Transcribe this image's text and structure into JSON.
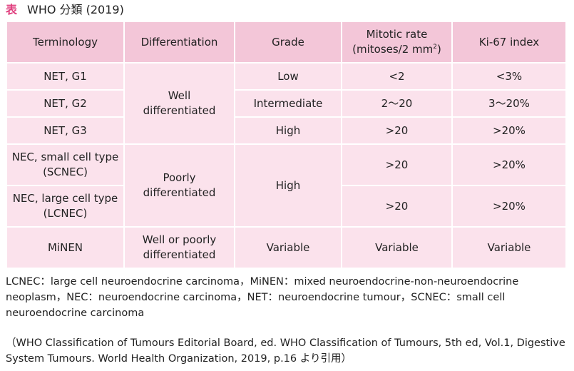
{
  "title": {
    "label": "表",
    "text": "WHO 分類 (2019)"
  },
  "table": {
    "headers": {
      "terminology": "Terminology",
      "differentiation": "Differentiation",
      "grade": "Grade",
      "mitotic_line1": "Mitotic rate",
      "mitotic_line2": "(mitoses/2 mm",
      "mitotic_sup": "2",
      "mitotic_close": ")",
      "ki67": "Ki-67 index"
    },
    "rows": [
      {
        "terminology": "NET, G1",
        "grade": "Low",
        "mitotic": "<2",
        "ki67": "<3%"
      },
      {
        "terminology": "NET, G2",
        "grade": "Intermediate",
        "mitotic": "2〜20",
        "ki67": "3〜20%"
      },
      {
        "terminology": "NET, G3",
        "grade": "High",
        "mitotic": ">20",
        "ki67": ">20%"
      },
      {
        "terminology_line1": "NEC, small cell type",
        "terminology_line2": "(SCNEC)",
        "mitotic": ">20",
        "ki67": ">20%"
      },
      {
        "terminology_line1": "NEC, large cell type",
        "terminology_line2": "(LCNEC)",
        "mitotic": ">20",
        "ki67": ">20%"
      },
      {
        "terminology": "MiNEN",
        "differentiation_line1": "Well or poorly",
        "differentiation_line2": "differentiated",
        "grade": "Variable",
        "mitotic": "Variable",
        "ki67": "Variable"
      }
    ],
    "groups": {
      "net_diff_line1": "Well",
      "net_diff_line2": "differentiated",
      "nec_diff_line1": "Poorly",
      "nec_diff_line2": "differentiated",
      "nec_grade": "High"
    }
  },
  "notes": "LCNEC：large cell neuroendocrine carcinoma，MiNEN：mixed neuroendocrine-non-neuroendocrine neoplasm，NEC：neuroendocrine carcinoma，NET：neuroendocrine tumour，SCNEC：small cell neuroendocrine carcinoma",
  "citation": "（WHO Classification of Tumours Editorial Board, ed. WHO Classification of Tumours, 5th ed, Vol.1, Digestive System Tumours. World Health Organization, 2019, p.16 より引用）",
  "colors": {
    "accent": "#e0407f",
    "header_bg": "#f3c6d8",
    "body_bg": "#fbe2ec"
  }
}
